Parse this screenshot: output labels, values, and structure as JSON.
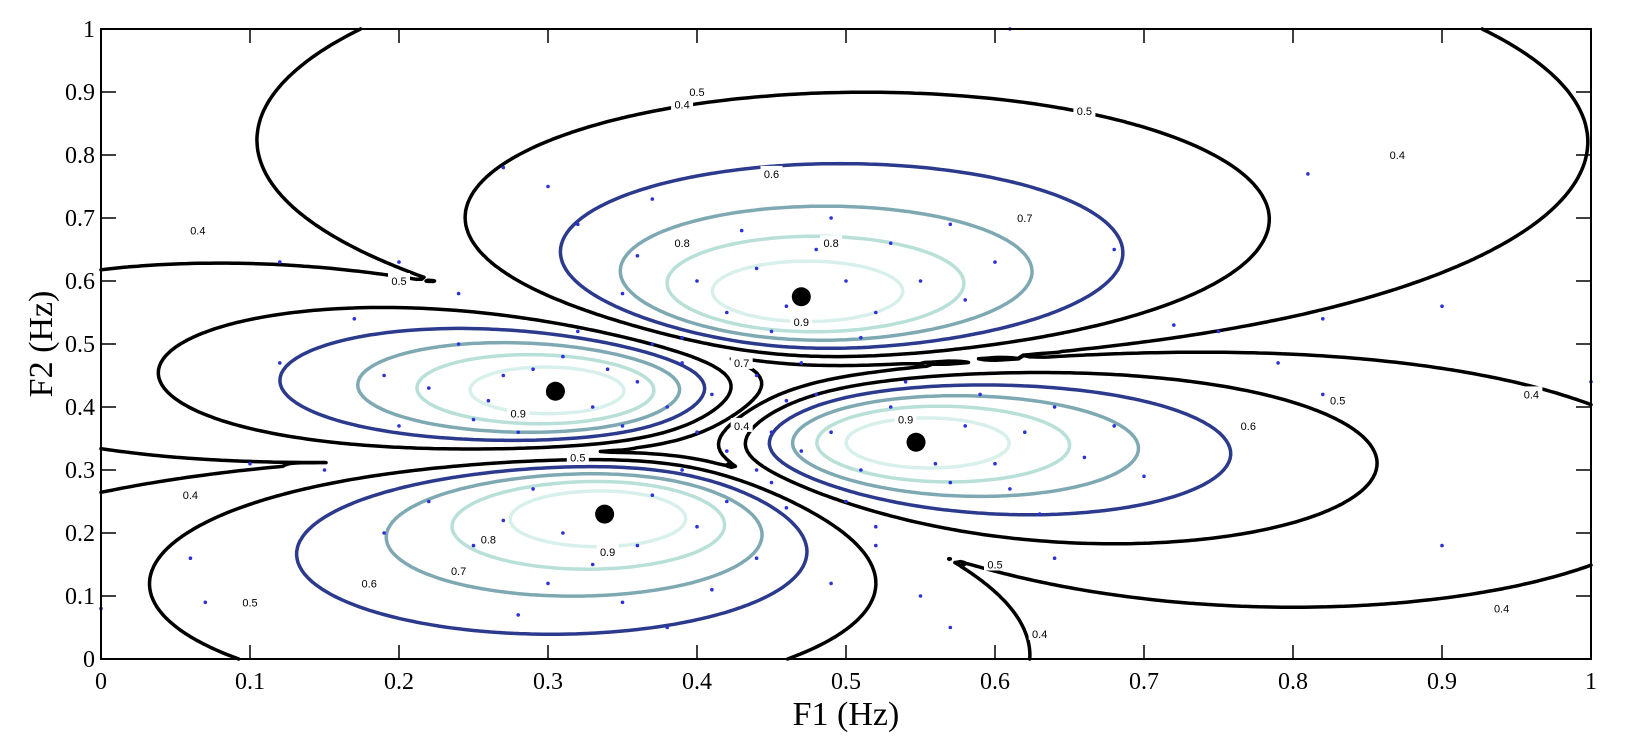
{
  "chart_data": {
    "type": "scatter",
    "title": "",
    "xlabel": "F1 (Hz)",
    "ylabel": "F2 (Hz)",
    "xlim": [
      0,
      1
    ],
    "ylim": [
      0,
      1
    ],
    "grid": false,
    "xticks": [
      "0",
      "0.1",
      "0.2",
      "0.3",
      "0.4",
      "0.5",
      "0.6",
      "0.7",
      "0.8",
      "0.9",
      "1"
    ],
    "yticks": [
      "0",
      "0.1",
      "0.2",
      "0.3",
      "0.4",
      "0.5",
      "0.6",
      "0.7",
      "0.8",
      "0.9",
      "1"
    ],
    "contour_levels": [
      {
        "level": 0.4,
        "label": "0.4",
        "color": "#000000"
      },
      {
        "level": 0.5,
        "label": "0.5",
        "color": "#000000"
      },
      {
        "level": 0.6,
        "label": "0.6",
        "color": "#2b3a8c"
      },
      {
        "level": 0.7,
        "label": "0.7",
        "color": "#7fa9b2"
      },
      {
        "level": 0.8,
        "label": "0.8",
        "color": "#b8e0d8"
      },
      {
        "level": 0.9,
        "label": "0.9",
        "color": "#d8f0ec"
      }
    ],
    "centers": [
      {
        "x": 0.47,
        "y": 0.575
      },
      {
        "x": 0.305,
        "y": 0.425
      },
      {
        "x": 0.547,
        "y": 0.344
      },
      {
        "x": 0.338,
        "y": 0.23
      }
    ],
    "contour_labels": [
      {
        "x": 0.39,
        "y": 0.88,
        "text": "0.4"
      },
      {
        "x": 0.065,
        "y": 0.68,
        "text": "0.4"
      },
      {
        "x": 0.87,
        "y": 0.8,
        "text": "0.4"
      },
      {
        "x": 0.96,
        "y": 0.42,
        "text": "0.4"
      },
      {
        "x": 0.94,
        "y": 0.08,
        "text": "0.4"
      },
      {
        "x": 0.63,
        "y": 0.04,
        "text": "0.4"
      },
      {
        "x": 0.06,
        "y": 0.26,
        "text": "0.4"
      },
      {
        "x": 0.43,
        "y": 0.37,
        "text": "0.4"
      },
      {
        "x": 0.66,
        "y": 0.87,
        "text": "0.5"
      },
      {
        "x": 0.4,
        "y": 0.9,
        "text": "0.5"
      },
      {
        "x": 0.2,
        "y": 0.6,
        "text": "0.5"
      },
      {
        "x": 0.83,
        "y": 0.41,
        "text": "0.5"
      },
      {
        "x": 0.6,
        "y": 0.15,
        "text": "0.5"
      },
      {
        "x": 0.1,
        "y": 0.09,
        "text": "0.5"
      },
      {
        "x": 0.32,
        "y": 0.32,
        "text": "0.5"
      },
      {
        "x": 0.45,
        "y": 0.77,
        "text": "0.6"
      },
      {
        "x": 0.77,
        "y": 0.37,
        "text": "0.6"
      },
      {
        "x": 0.18,
        "y": 0.12,
        "text": "0.6"
      },
      {
        "x": 0.62,
        "y": 0.7,
        "text": "0.7"
      },
      {
        "x": 0.43,
        "y": 0.47,
        "text": "0.7"
      },
      {
        "x": 0.24,
        "y": 0.14,
        "text": "0.7"
      },
      {
        "x": 0.39,
        "y": 0.66,
        "text": "0.8"
      },
      {
        "x": 0.49,
        "y": 0.66,
        "text": "0.8"
      },
      {
        "x": 0.26,
        "y": 0.19,
        "text": "0.8"
      },
      {
        "x": 0.47,
        "y": 0.535,
        "text": "0.9"
      },
      {
        "x": 0.28,
        "y": 0.39,
        "text": "0.9"
      },
      {
        "x": 0.34,
        "y": 0.17,
        "text": "0.9"
      },
      {
        "x": 0.54,
        "y": 0.38,
        "text": "0.9"
      }
    ],
    "points": [
      [
        0.47,
        0.58
      ],
      [
        0.44,
        0.62
      ],
      [
        0.5,
        0.6
      ],
      [
        0.52,
        0.55
      ],
      [
        0.42,
        0.55
      ],
      [
        0.48,
        0.65
      ],
      [
        0.55,
        0.6
      ],
      [
        0.4,
        0.6
      ],
      [
        0.45,
        0.52
      ],
      [
        0.53,
        0.66
      ],
      [
        0.49,
        0.7
      ],
      [
        0.36,
        0.64
      ],
      [
        0.58,
        0.57
      ],
      [
        0.43,
        0.68
      ],
      [
        0.51,
        0.51
      ],
      [
        0.46,
        0.56
      ],
      [
        0.57,
        0.69
      ],
      [
        0.39,
        0.51
      ],
      [
        0.6,
        0.63
      ],
      [
        0.35,
        0.58
      ],
      [
        0.3,
        0.42
      ],
      [
        0.27,
        0.45
      ],
      [
        0.33,
        0.4
      ],
      [
        0.25,
        0.38
      ],
      [
        0.31,
        0.48
      ],
      [
        0.36,
        0.44
      ],
      [
        0.22,
        0.43
      ],
      [
        0.28,
        0.36
      ],
      [
        0.35,
        0.37
      ],
      [
        0.39,
        0.47
      ],
      [
        0.24,
        0.5
      ],
      [
        0.32,
        0.52
      ],
      [
        0.2,
        0.37
      ],
      [
        0.38,
        0.4
      ],
      [
        0.29,
        0.46
      ],
      [
        0.26,
        0.41
      ],
      [
        0.34,
        0.46
      ],
      [
        0.41,
        0.42
      ],
      [
        0.19,
        0.45
      ],
      [
        0.37,
        0.5
      ],
      [
        0.55,
        0.34
      ],
      [
        0.58,
        0.37
      ],
      [
        0.51,
        0.3
      ],
      [
        0.6,
        0.31
      ],
      [
        0.53,
        0.4
      ],
      [
        0.62,
        0.36
      ],
      [
        0.49,
        0.36
      ],
      [
        0.57,
        0.28
      ],
      [
        0.64,
        0.4
      ],
      [
        0.5,
        0.25
      ],
      [
        0.66,
        0.32
      ],
      [
        0.54,
        0.44
      ],
      [
        0.61,
        0.27
      ],
      [
        0.47,
        0.33
      ],
      [
        0.68,
        0.37
      ],
      [
        0.59,
        0.42
      ],
      [
        0.52,
        0.21
      ],
      [
        0.63,
        0.23
      ],
      [
        0.7,
        0.29
      ],
      [
        0.56,
        0.31
      ],
      [
        0.34,
        0.23
      ],
      [
        0.31,
        0.2
      ],
      [
        0.37,
        0.26
      ],
      [
        0.29,
        0.27
      ],
      [
        0.4,
        0.21
      ],
      [
        0.33,
        0.15
      ],
      [
        0.27,
        0.22
      ],
      [
        0.36,
        0.18
      ],
      [
        0.42,
        0.25
      ],
      [
        0.3,
        0.12
      ],
      [
        0.25,
        0.18
      ],
      [
        0.39,
        0.3
      ],
      [
        0.44,
        0.16
      ],
      [
        0.22,
        0.25
      ],
      [
        0.35,
        0.09
      ],
      [
        0.41,
        0.11
      ],
      [
        0.28,
        0.07
      ],
      [
        0.45,
        0.28
      ],
      [
        0.19,
        0.2
      ],
      [
        0.38,
        0.05
      ],
      [
        0.43,
        0.38
      ],
      [
        0.44,
        0.45
      ],
      [
        0.46,
        0.41
      ],
      [
        0.42,
        0.33
      ],
      [
        0.47,
        0.47
      ],
      [
        0.45,
        0.36
      ],
      [
        0.4,
        0.36
      ],
      [
        0.48,
        0.42
      ],
      [
        0.44,
        0.3
      ],
      [
        0.46,
        0.24
      ],
      [
        0.27,
        0.78
      ],
      [
        0.3,
        0.75
      ],
      [
        0.12,
        0.63
      ],
      [
        0.17,
        0.54
      ],
      [
        0.1,
        0.31
      ],
      [
        0.06,
        0.16
      ],
      [
        0.07,
        0.09
      ],
      [
        0.0,
        0.08
      ],
      [
        0.15,
        0.3
      ],
      [
        0.12,
        0.47
      ],
      [
        0.68,
        0.65
      ],
      [
        0.72,
        0.53
      ],
      [
        0.75,
        0.52
      ],
      [
        0.79,
        0.47
      ],
      [
        0.82,
        0.54
      ],
      [
        0.82,
        0.42
      ],
      [
        0.9,
        0.56
      ],
      [
        0.9,
        0.18
      ],
      [
        0.81,
        0.77
      ],
      [
        1.0,
        0.44
      ],
      [
        0.61,
        1.0
      ],
      [
        0.55,
        0.1
      ],
      [
        0.57,
        0.05
      ],
      [
        0.52,
        0.18
      ],
      [
        0.49,
        0.12
      ],
      [
        0.64,
        0.16
      ],
      [
        0.24,
        0.58
      ],
      [
        0.2,
        0.63
      ],
      [
        0.37,
        0.73
      ],
      [
        0.32,
        0.69
      ]
    ]
  }
}
